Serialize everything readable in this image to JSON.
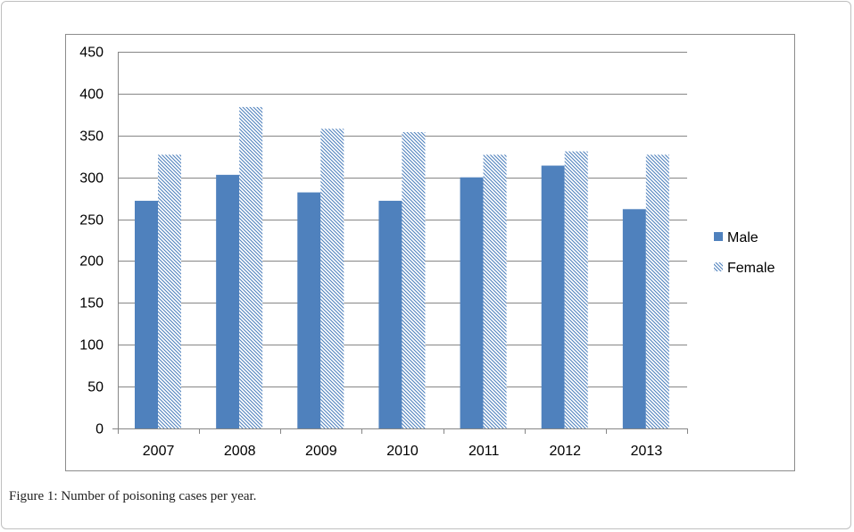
{
  "caption": "Figure 1: Number of poisoning cases per year.",
  "chart_data": {
    "type": "bar",
    "title": "",
    "xlabel": "",
    "ylabel": "",
    "categories": [
      "2007",
      "2008",
      "2009",
      "2010",
      "2011",
      "2012",
      "2013"
    ],
    "series": [
      {
        "name": "Male",
        "values": [
          272,
          303,
          282,
          272,
          300,
          314,
          262
        ],
        "color": "#4f81bd",
        "pattern": "solid"
      },
      {
        "name": "Female",
        "values": [
          327,
          384,
          358,
          354,
          327,
          331,
          327
        ],
        "color": "#4f81bd",
        "pattern": "diagonal-hatch"
      }
    ],
    "ylim": [
      0,
      450
    ],
    "yticks": [
      0,
      50,
      100,
      150,
      200,
      250,
      300,
      350,
      400,
      450
    ],
    "grid": true,
    "legend": "right"
  }
}
